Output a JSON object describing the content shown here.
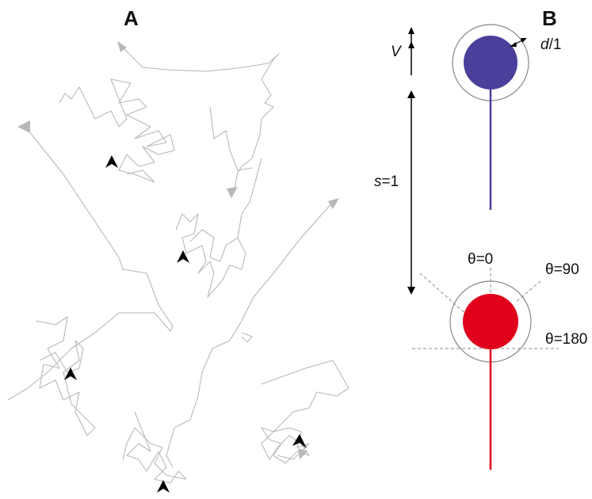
{
  "panel_a": {
    "letter": "A"
  },
  "panel_b": {
    "letter": "B",
    "label_v": "V",
    "label_d": "d",
    "label_d_suffix": "/1",
    "label_s": "s",
    "label_s_suffix": "=1",
    "label_theta0": "θ=0",
    "label_theta90": "θ=90",
    "label_theta180": "θ=180",
    "colors": {
      "upper_cell": "#4a3f9a",
      "lower_cell": "#e0001b",
      "ring": "#888888",
      "trail": "#b8b8b8",
      "marker": "#000000"
    }
  }
}
